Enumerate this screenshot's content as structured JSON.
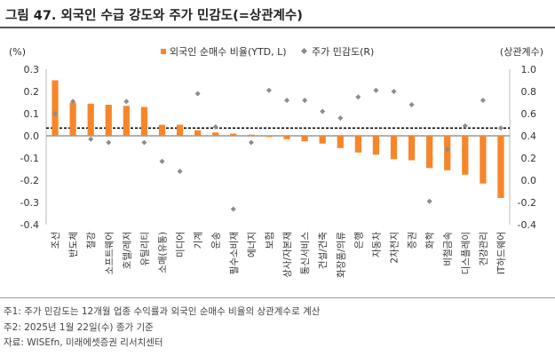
{
  "title": "그림 47. 외국인 수급 강도와 주가 민감도(=상관계수)",
  "notes": {
    "note1": "주1: 주가 민감도는 12개월 업종 수익률과 외국인 순매수 비율의 상관계수로 계산",
    "note2": "주2: 2025년 1월 22일(수) 종가 기준",
    "source": "자료: WISEfn, 미래에셋증권 리서치센터"
  },
  "colors": {
    "bar": "#F7862A",
    "marker": "#8C8C8C",
    "zero_line": "#000000",
    "axis": "#BBBBBB"
  },
  "chart_data": {
    "type": "bar",
    "title": "외국인 수급 강도와 주가 민감도(=상관계수)",
    "left_axis_unit": "(%)",
    "right_axis_unit": "(상관계수)",
    "left_ylim": [
      -0.4,
      0.3
    ],
    "right_ylim": [
      -0.4,
      1.0
    ],
    "left_ticks": [
      "0.3",
      "0.2",
      "0.1",
      "0.0",
      "-0.1",
      "-0.2",
      "-0.3",
      "-0.4"
    ],
    "right_ticks": [
      "1.0",
      "0.8",
      "0.6",
      "0.4",
      "0.2",
      "0.0",
      "-0.2",
      "-0.4"
    ],
    "reference_line_right_value": 0.47,
    "legend": [
      "외국인 순매수 비율(YTD, L)",
      "주가 민감도(R)"
    ],
    "categories": [
      "조선",
      "반도체",
      "철강",
      "소프트웨어",
      "호텔/레저",
      "유틸리티",
      "소매(유통)",
      "미디어",
      "기계",
      "운송",
      "필수소비재",
      "에너지",
      "보험",
      "상사/자본재",
      "통신서비스",
      "건설/건축",
      "화장품/의류",
      "은행",
      "자동차",
      "2차전지",
      "증권",
      "화학",
      "비철금속",
      "디스플레이",
      "건강관리",
      "IT하드웨어"
    ],
    "series": [
      {
        "name": "외국인 순매수 비율(YTD, L)",
        "axis": "left",
        "values": [
          0.25,
          0.15,
          0.145,
          0.14,
          0.135,
          0.13,
          0.05,
          0.05,
          0.025,
          0.015,
          0.01,
          0.005,
          -0.005,
          -0.015,
          -0.025,
          -0.035,
          -0.055,
          -0.075,
          -0.085,
          -0.105,
          -0.11,
          -0.145,
          -0.155,
          -0.175,
          -0.215,
          -0.28
        ]
      },
      {
        "name": "주가 민감도(R)",
        "axis": "right",
        "values": [
          0.6,
          0.71,
          0.37,
          0.34,
          0.71,
          0.34,
          0.17,
          0.08,
          0.78,
          0.48,
          -0.26,
          0.34,
          0.81,
          0.72,
          0.72,
          0.62,
          0.56,
          0.75,
          0.81,
          0.8,
          0.68,
          -0.19,
          0.28,
          0.49,
          0.72,
          0.47
        ]
      }
    ]
  }
}
